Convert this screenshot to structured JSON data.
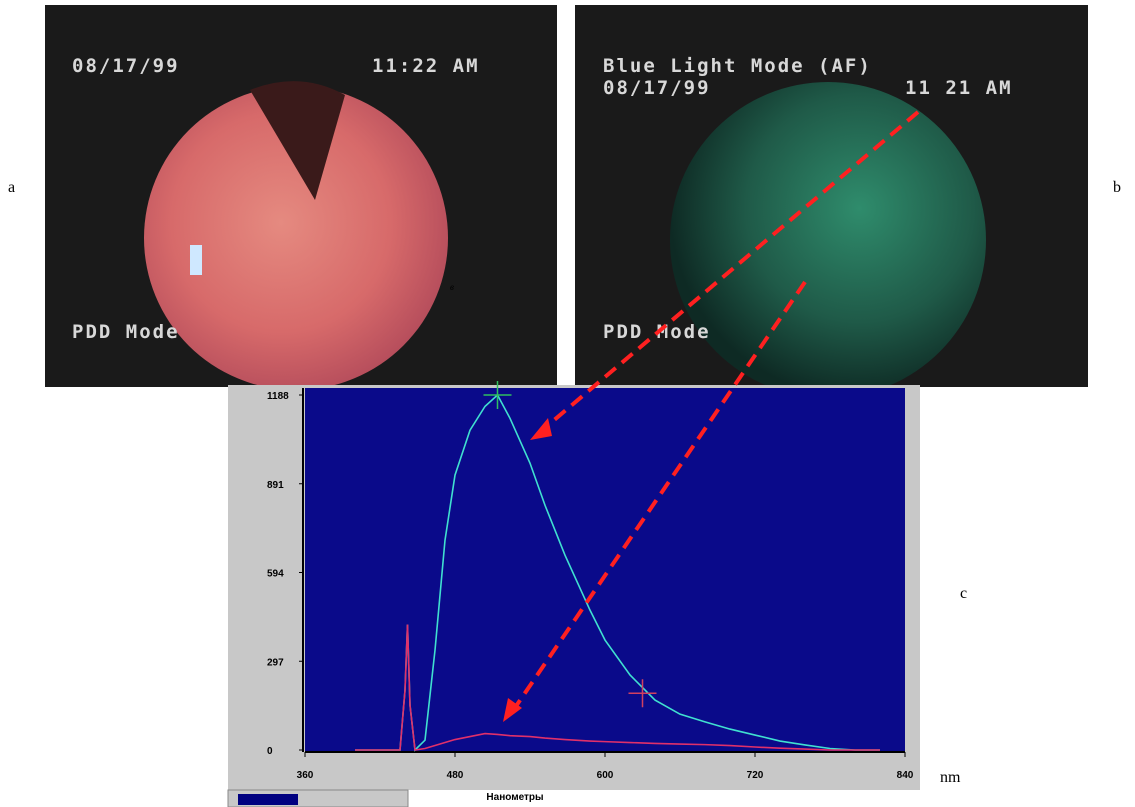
{
  "panels": {
    "a": {
      "label": "a",
      "date": "08/17/99",
      "time": "11:22 AM",
      "mode": "PDD Mode",
      "mark": "в"
    },
    "b": {
      "label": "b",
      "title": "Blue Light Mode (AF)",
      "date": "08/17/99",
      "time": "11 21 AM",
      "mode": "PDD Mode"
    },
    "c": {
      "label": "c",
      "unit": "nm"
    }
  },
  "chart_data": {
    "type": "line",
    "xlabel": "Нанометры",
    "x": [
      400,
      436,
      440,
      442,
      444,
      448,
      456,
      464,
      472,
      480,
      492,
      504,
      514,
      524,
      540,
      552,
      568,
      588,
      600,
      620,
      640,
      660,
      680,
      700,
      720,
      740,
      760,
      780,
      800,
      820
    ],
    "series": [
      {
        "color": "#40e0d0",
        "values": [
          0,
          0,
          200,
          420,
          150,
          0,
          33,
          334,
          702,
          920,
          1070,
          1150,
          1188,
          1110,
          960,
          819,
          652,
          468,
          368,
          251,
          167,
          120,
          94,
          70,
          50,
          30,
          17,
          5,
          0,
          0
        ]
      },
      {
        "color": "#e0306a",
        "values": [
          0,
          0,
          200,
          420,
          150,
          0,
          5,
          15,
          25,
          35,
          45,
          55,
          52,
          48,
          45,
          40,
          35,
          30,
          28,
          25,
          22,
          20,
          18,
          15,
          10,
          6,
          3,
          0,
          0,
          0
        ]
      }
    ],
    "cursors": [
      {
        "x": 514,
        "y": 1188,
        "color": "#30c060"
      },
      {
        "x": 630,
        "y": 190,
        "color": "#d04060"
      }
    ],
    "xlim": [
      360,
      840
    ],
    "xticks": [
      360,
      480,
      600,
      720,
      840
    ],
    "ylim": [
      0,
      1188
    ],
    "yticks": [
      0,
      297,
      594,
      891,
      1188
    ]
  }
}
